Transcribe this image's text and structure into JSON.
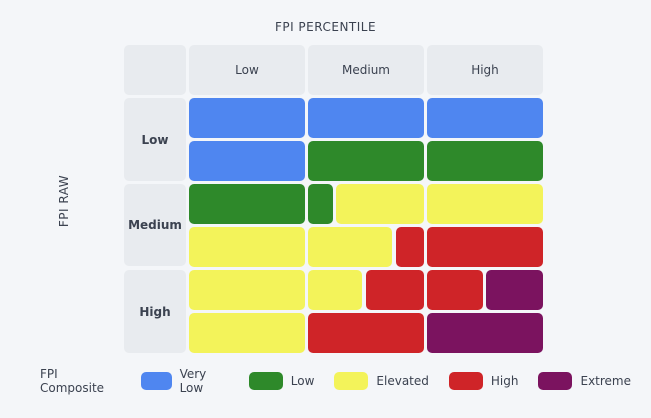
{
  "chart_data": {
    "type": "heatmap",
    "x_title": "FPI PERCENTILE",
    "y_title": "FPI RAW",
    "x_categories": [
      "Low",
      "Medium",
      "High"
    ],
    "y_categories": [
      "Low",
      "Medium",
      "High"
    ],
    "levels": [
      {
        "key": "very_low",
        "label": "Very Low",
        "color": "#4f86f0"
      },
      {
        "key": "low",
        "label": "Low",
        "color": "#2e892a"
      },
      {
        "key": "elevated",
        "label": "Elevated",
        "color": "#f3f35a"
      },
      {
        "key": "high",
        "label": "High",
        "color": "#cf2428"
      },
      {
        "key": "extreme",
        "label": "Extreme",
        "color": "#7b135f"
      }
    ],
    "subcolumn_groups": [
      1,
      4,
      2
    ],
    "subrows_per_category": 2,
    "grid": [
      [
        "very_low",
        "very_low",
        "very_low",
        "very_low",
        "very_low",
        "very_low",
        "very_low"
      ],
      [
        "very_low",
        "low",
        "low",
        "low",
        "low",
        "low",
        "low"
      ],
      [
        "low",
        "low",
        "elevated",
        "elevated",
        "elevated",
        "elevated",
        "elevated"
      ],
      [
        "elevated",
        "elevated",
        "elevated",
        "elevated",
        "high",
        "high",
        "high"
      ],
      [
        "elevated",
        "elevated",
        "elevated",
        "high",
        "high",
        "high",
        "extreme"
      ],
      [
        "elevated",
        "high",
        "high",
        "high",
        "high",
        "extreme",
        "extreme"
      ]
    ]
  },
  "legend": {
    "title": "FPI Composite"
  }
}
